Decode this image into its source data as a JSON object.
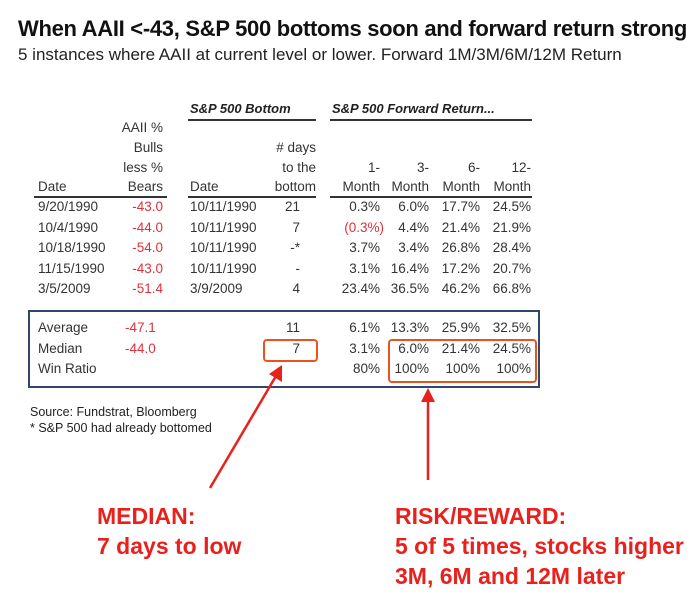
{
  "title": "When AAII <-43, S&P 500 bottoms soon and forward return strong",
  "subtitle": "5 instances where AAII at current level or lower. Forward 1M/3M/6M/12M Return",
  "table": {
    "group_headers": {
      "bottom": "S&P 500 Bottom",
      "forward": "S&P 500 Forward Return..."
    },
    "headers": {
      "date": "Date",
      "aaii": [
        "AAII %",
        "Bulls",
        "less %",
        "Bears"
      ],
      "bottom_date": "Date",
      "days": [
        "# days",
        "to the",
        "bottom"
      ],
      "m1": [
        "1-",
        "Month"
      ],
      "m3": [
        "3-",
        "Month"
      ],
      "m6": [
        "6-",
        "Month"
      ],
      "m12": [
        "12-",
        "Month"
      ]
    },
    "rows": [
      {
        "date": "9/20/1990",
        "aaii": "-43.0",
        "bottom_date": "10/11/1990",
        "days": "21",
        "m1": "0.3%",
        "m3": "6.0%",
        "m6": "17.7%",
        "m12": "24.5%"
      },
      {
        "date": "10/4/1990",
        "aaii": "-44.0",
        "bottom_date": "10/11/1990",
        "days": "7",
        "m1": "(0.3%)",
        "m3": "4.4%",
        "m6": "21.4%",
        "m12": "21.9%"
      },
      {
        "date": "10/18/1990",
        "aaii": "-54.0",
        "bottom_date": "10/11/1990",
        "days": "-*",
        "m1": "3.7%",
        "m3": "3.4%",
        "m6": "26.8%",
        "m12": "28.4%"
      },
      {
        "date": "11/15/1990",
        "aaii": "-43.0",
        "bottom_date": "10/11/1990",
        "days": "-",
        "m1": "3.1%",
        "m3": "16.4%",
        "m6": "17.2%",
        "m12": "20.7%"
      },
      {
        "date": "3/5/2009",
        "aaii": "-51.4",
        "bottom_date": "3/9/2009",
        "days": "4",
        "m1": "23.4%",
        "m3": "36.5%",
        "m6": "46.2%",
        "m12": "66.8%"
      }
    ],
    "summary": [
      {
        "label": "Average",
        "aaii": "-47.1",
        "days": "11",
        "m1": "6.1%",
        "m3": "13.3%",
        "m6": "25.9%",
        "m12": "32.5%"
      },
      {
        "label": "Median",
        "aaii": "-44.0",
        "days": "7",
        "m1": "3.1%",
        "m3": "6.0%",
        "m6": "21.4%",
        "m12": "24.5%"
      },
      {
        "label": "Win Ratio",
        "aaii": "",
        "days": "",
        "m1": "80%",
        "m3": "100%",
        "m6": "100%",
        "m12": "100%"
      }
    ]
  },
  "source": "Source: Fundstrat, Bloomberg",
  "footnote": "* S&P 500 had already bottomed",
  "callouts": {
    "median": [
      "MEDIAN:",
      "7 days to low"
    ],
    "risk": [
      "RISK/REWARD:",
      "5 of 5 times, stocks higher",
      "3M, 6M and 12M later"
    ]
  },
  "colors": {
    "negative": "#e0313a",
    "highlight": "#e8541e",
    "callout": "#e8211d",
    "box": "#31466e"
  }
}
